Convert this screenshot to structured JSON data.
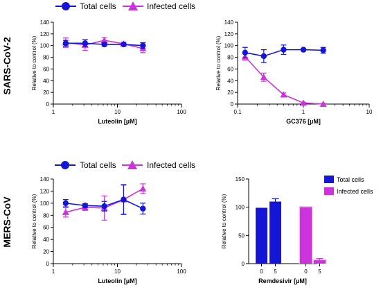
{
  "row_labels": [
    "SARS-CoV-2",
    "MERS-CoV"
  ],
  "colors": {
    "total": "#1515d6",
    "infected": "#cc33dd"
  },
  "legend": {
    "total": "Total cells",
    "infected": "Infected cells"
  },
  "chart_data": [
    {
      "type": "line",
      "xscale": "log",
      "xlim": [
        1,
        100
      ],
      "xticks": [
        "1",
        "10",
        "100"
      ],
      "ylim": [
        0,
        140
      ],
      "yticks": [
        "0",
        "20",
        "40",
        "60",
        "80",
        "100",
        "120",
        "140"
      ],
      "xlabel": "Luteolin [µM]",
      "ylabel": "Relative to control (%)",
      "legend_position": "top",
      "series": [
        {
          "name": "Total cells",
          "marker": "circle",
          "x": [
            1.56,
            3.13,
            6.25,
            12.5,
            25
          ],
          "y": [
            104,
            104,
            102,
            102,
            100
          ],
          "err": [
            5,
            6,
            3,
            2,
            5
          ]
        },
        {
          "name": "Infected cells",
          "marker": "triangle",
          "x": [
            1.56,
            3.13,
            6.25,
            12.5,
            25
          ],
          "y": [
            105,
            101,
            109,
            103,
            95
          ],
          "err": [
            8,
            9,
            5,
            3,
            7
          ]
        }
      ]
    },
    {
      "type": "line",
      "xscale": "log",
      "xlim": [
        0.1,
        10
      ],
      "xticks": [
        "0.1",
        "1",
        "10"
      ],
      "ylim": [
        0,
        140
      ],
      "yticks": [
        "0",
        "20",
        "40",
        "60",
        "80",
        "100",
        "120",
        "140"
      ],
      "xlabel": "GC376 [µM]",
      "ylabel": "Relative to control (%)",
      "series": [
        {
          "name": "Total cells",
          "marker": "circle",
          "x": [
            0.13,
            0.25,
            0.5,
            1,
            2
          ],
          "y": [
            88,
            82,
            93,
            93,
            92
          ],
          "err": [
            9,
            11,
            8,
            2,
            5
          ]
        },
        {
          "name": "Infected cells",
          "marker": "triangle",
          "x": [
            0.13,
            0.25,
            0.5,
            1,
            2
          ],
          "y": [
            81,
            46,
            16,
            2,
            0
          ],
          "err": [
            6,
            7,
            3,
            1,
            1
          ]
        }
      ]
    },
    {
      "type": "line",
      "xscale": "log",
      "xlim": [
        1,
        100
      ],
      "xticks": [
        "1",
        "10",
        "100"
      ],
      "ylim": [
        0,
        140
      ],
      "yticks": [
        "0",
        "20",
        "40",
        "60",
        "80",
        "100",
        "120",
        "140"
      ],
      "xlabel": "Luteolin [µM]",
      "ylabel": "Relative to control (%)",
      "legend_position": "top",
      "series": [
        {
          "name": "Total cells",
          "marker": "circle",
          "x": [
            1.56,
            3.13,
            6.25,
            12.5,
            25
          ],
          "y": [
            100,
            96,
            95,
            106,
            91
          ],
          "err": [
            6,
            3,
            8,
            24,
            9
          ]
        },
        {
          "name": "Infected cells",
          "marker": "triangle",
          "x": [
            1.56,
            3.13,
            6.25,
            12.5,
            25
          ],
          "y": [
            85,
            93,
            92,
            106,
            124
          ],
          "err": [
            8,
            5,
            20,
            25,
            8
          ]
        }
      ]
    },
    {
      "type": "bar",
      "ylim": [
        0,
        150
      ],
      "yticks": [
        "0",
        "50",
        "100",
        "150"
      ],
      "xlabel": "Remdesivir [µM]",
      "ylabel": "Relative to control (%)",
      "legend_position": "top-right",
      "series": [
        {
          "name": "Total cells",
          "categories": [
            "0",
            "5"
          ],
          "values": [
            99,
            110
          ],
          "err": [
            0,
            5
          ]
        },
        {
          "name": "Infected cells",
          "categories": [
            "0",
            "5"
          ],
          "values": [
            100,
            6
          ],
          "err": [
            0,
            3
          ]
        }
      ]
    }
  ]
}
